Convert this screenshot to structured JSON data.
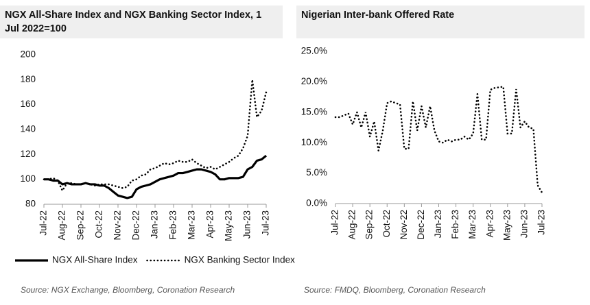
{
  "chart_data": [
    {
      "type": "line",
      "title": "NGX All-Share Index and NGX Banking Sector Index, 1 Jul 2022=100",
      "source": "Source:  NGX Exchange, Bloomberg, Coronation Research",
      "categories": [
        "Jul-22",
        null,
        null,
        null,
        "Aug-22",
        null,
        null,
        null,
        "Sep-22",
        null,
        null,
        null,
        "Oct-22",
        null,
        null,
        null,
        "Nov-22",
        null,
        null,
        null,
        "Dec-22",
        null,
        null,
        null,
        "Jan-23",
        null,
        null,
        null,
        "Feb-23",
        null,
        null,
        null,
        "Mar-23",
        null,
        null,
        null,
        "Apr-23",
        null,
        null,
        null,
        "May-23",
        null,
        null,
        null,
        "Jun-23",
        null,
        null,
        null,
        "Jul-23"
      ],
      "ylim": [
        80,
        200
      ],
      "yticks": [
        80,
        100,
        120,
        140,
        160,
        180,
        200
      ],
      "legend": "bottom",
      "series": [
        {
          "name": "NGX All-Share Index",
          "color": "#000000",
          "style": "solid",
          "values": [
            100,
            100,
            99,
            99,
            96,
            97,
            96,
            96,
            96,
            97,
            96,
            96,
            95,
            95,
            93,
            90,
            87,
            86,
            85,
            86,
            92,
            94,
            95,
            96,
            98,
            100,
            101,
            102,
            103,
            105,
            105,
            106,
            107,
            108,
            108,
            107,
            106,
            104,
            100,
            100,
            101,
            101,
            101,
            102,
            108,
            110,
            115,
            116,
            119
          ]
        },
        {
          "name": "NGX Banking Sector Index",
          "color": "#000000",
          "style": "dotted",
          "values": [
            100,
            100,
            101,
            99,
            91,
            97,
            97,
            96,
            96,
            97,
            96,
            95,
            96,
            96,
            96,
            95,
            94,
            93,
            94,
            99,
            100,
            103,
            104,
            108,
            109,
            111,
            113,
            112,
            113,
            115,
            114,
            114,
            116,
            113,
            111,
            109,
            110,
            108,
            110,
            112,
            114,
            117,
            119,
            125,
            135,
            180,
            150,
            155,
            170
          ]
        }
      ]
    },
    {
      "type": "line",
      "title": "Nigerian Inter-bank Offered Rate",
      "source": "Source:  FMDQ, Bloomberg, Coronation Research",
      "categories": [
        "Jul-22",
        null,
        null,
        null,
        "Aug-22",
        null,
        null,
        null,
        "Sep-22",
        null,
        null,
        null,
        "Oct-22",
        null,
        null,
        null,
        "Nov-22",
        null,
        null,
        null,
        "Dec-22",
        null,
        null,
        null,
        "Jan-23",
        null,
        null,
        null,
        "Feb-23",
        null,
        null,
        null,
        "Mar-23",
        null,
        null,
        null,
        "Apr-23",
        null,
        null,
        null,
        "May-23",
        null,
        null,
        null,
        "Jun-23",
        null,
        null,
        null,
        "Jul-23"
      ],
      "ylim": [
        0,
        25
      ],
      "yticks": [
        {
          "value": 0,
          "label": "0.0%"
        },
        {
          "value": 5,
          "label": "5.0%"
        },
        {
          "value": 10,
          "label": "10.0%"
        },
        {
          "value": 15,
          "label": "15.0%"
        },
        {
          "value": 20,
          "label": "20.0%"
        },
        {
          "value": 25,
          "label": "25.0%"
        }
      ],
      "series": [
        {
          "color": "#000000",
          "style": "dotted",
          "values": [
            14.2,
            14.2,
            14.5,
            14.8,
            13,
            15,
            12.5,
            15,
            11,
            13.5,
            8.7,
            12,
            16.5,
            16.8,
            16.5,
            16.3,
            9,
            9,
            16.8,
            12,
            16,
            12.5,
            16,
            12,
            10.2,
            10,
            10.5,
            10.2,
            10.5,
            10.5,
            11,
            10.5,
            11.5,
            18,
            10.5,
            10.5,
            18.7,
            19,
            19.1,
            19.2,
            11.5,
            11.5,
            18.8,
            12.5,
            13.5,
            12.5,
            12.3,
            3,
            1.8
          ]
        }
      ]
    }
  ]
}
